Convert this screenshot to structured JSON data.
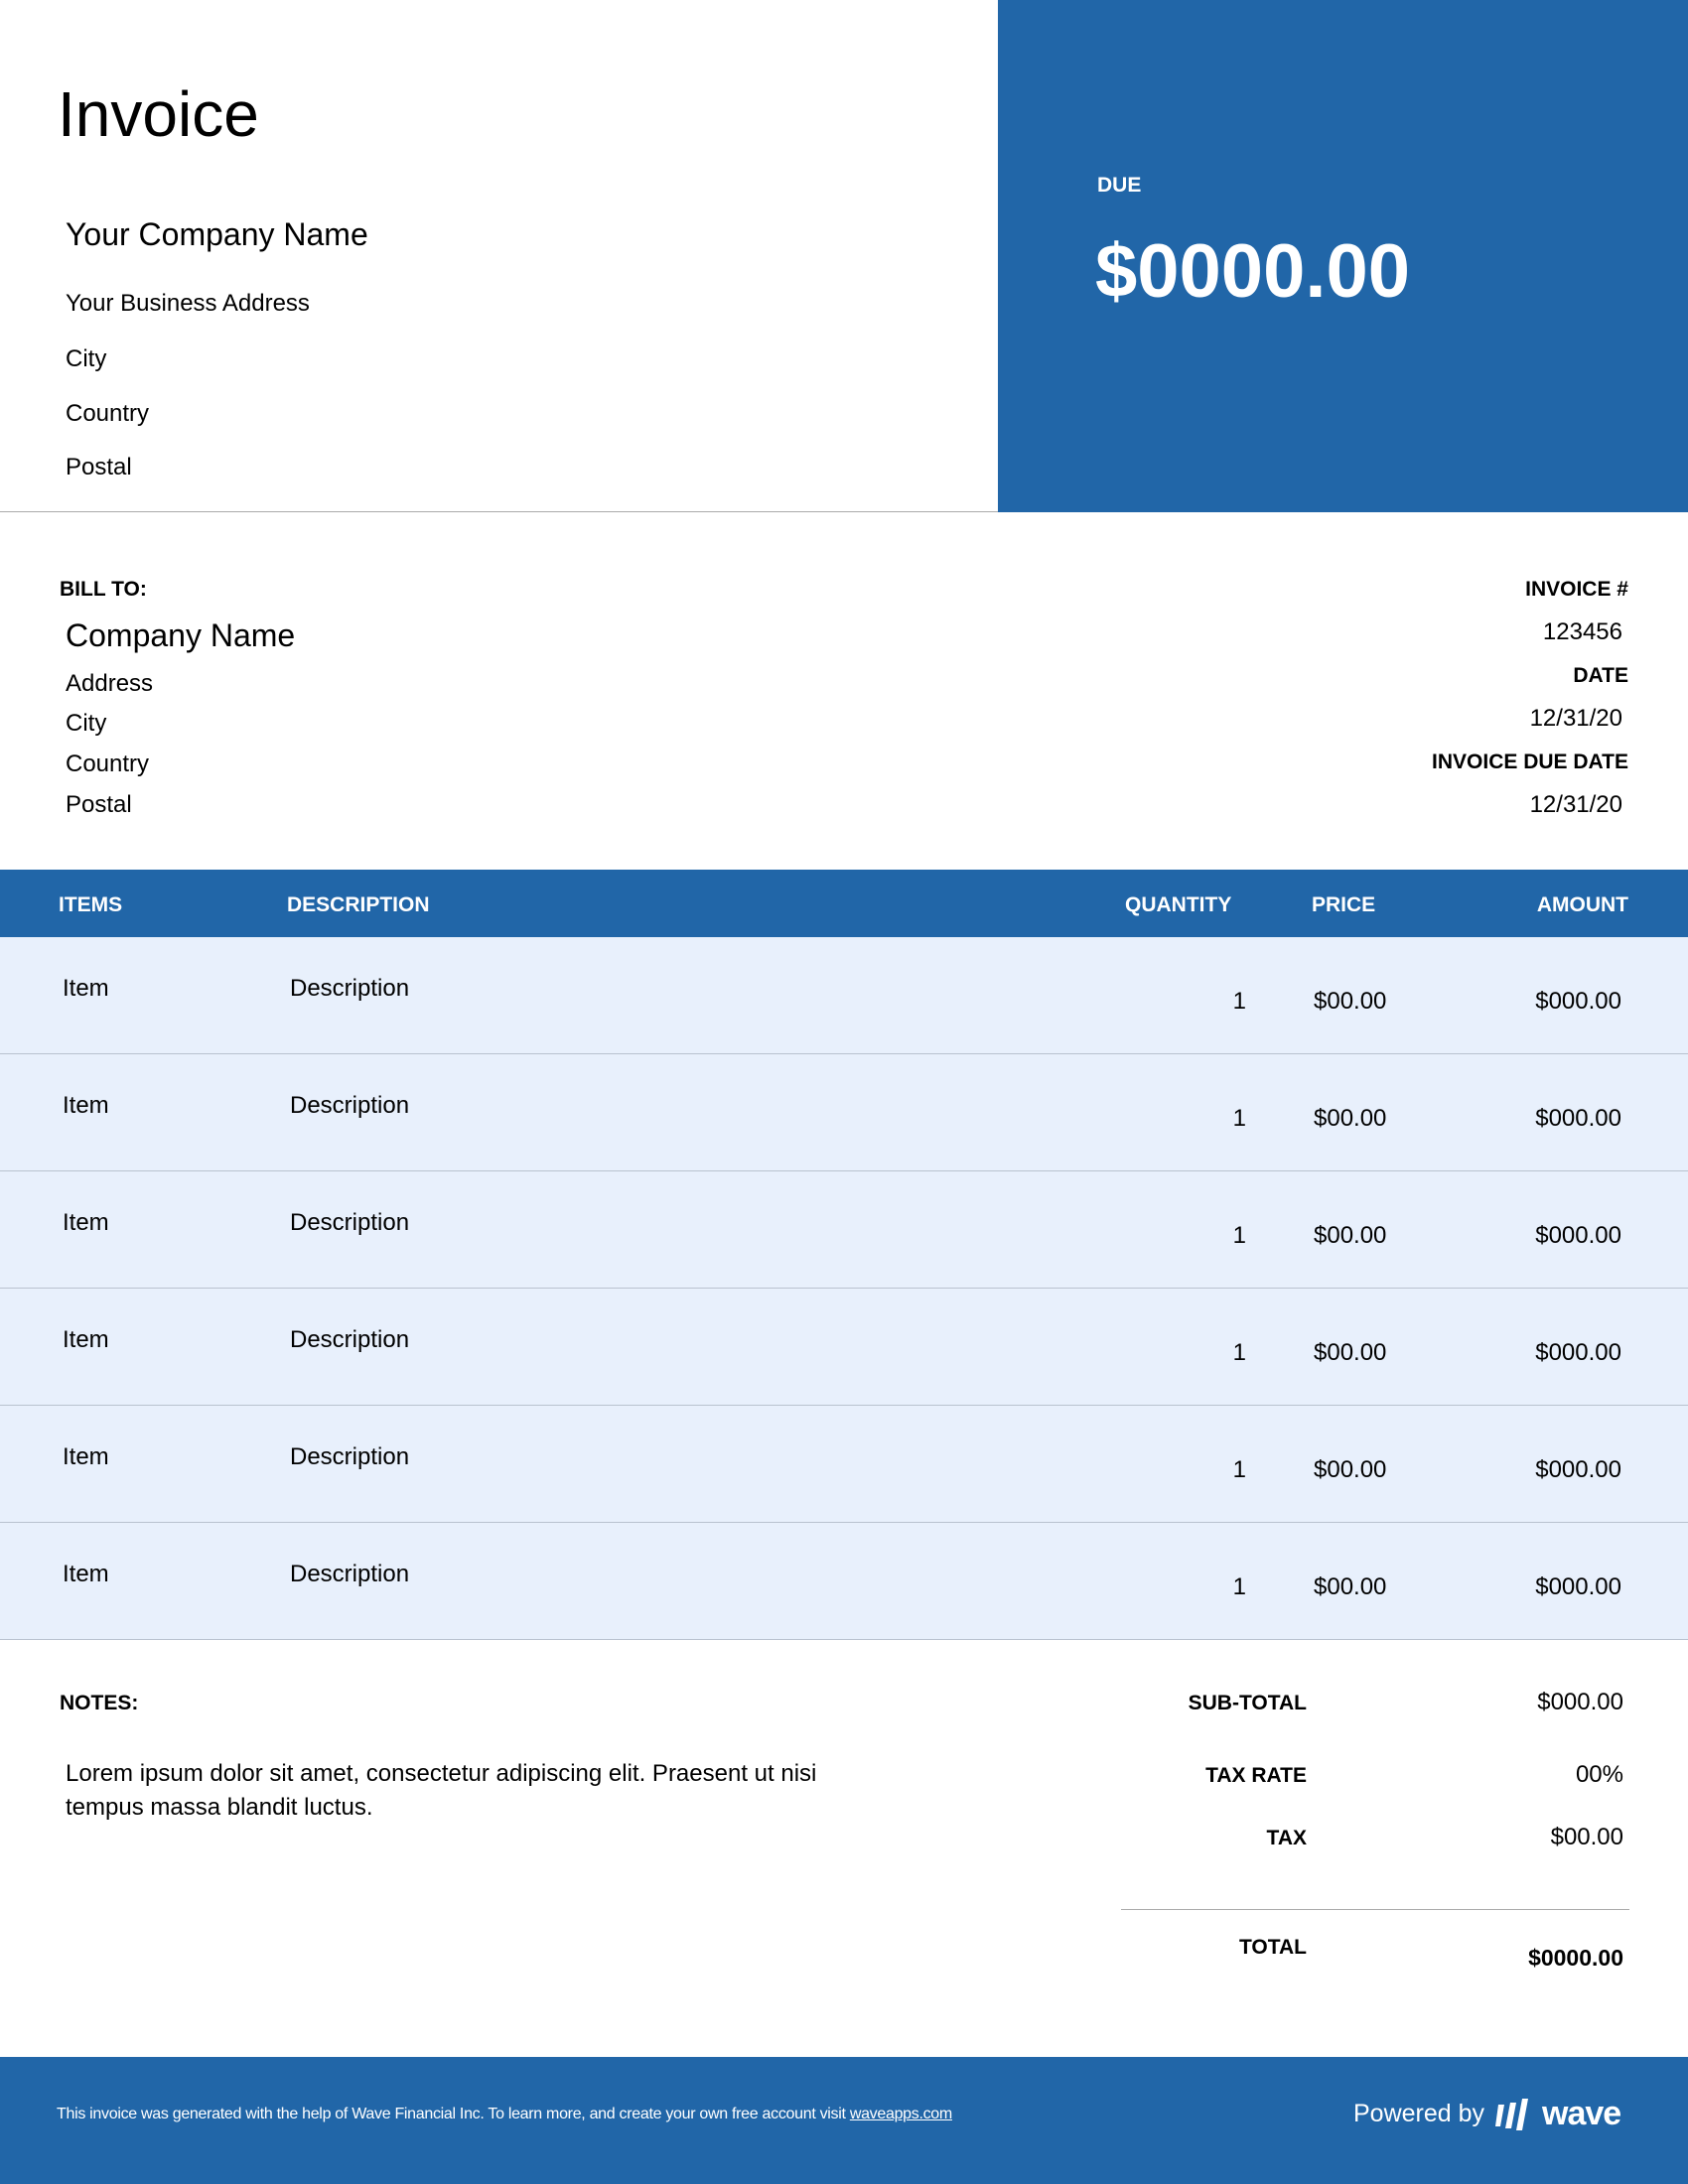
{
  "header": {
    "title": "Invoice",
    "company": "Your Company Name",
    "address": [
      "Your Business Address",
      "City",
      "Country",
      "Postal"
    ]
  },
  "due": {
    "label": "DUE",
    "amount": "$0000.00"
  },
  "bill_to": {
    "label": "BILL TO:",
    "company": "Company Name",
    "address": [
      "Address",
      "City",
      "Country",
      "Postal"
    ]
  },
  "meta": {
    "invoice_label": "INVOICE #",
    "invoice_number": "123456",
    "date_label": "DATE",
    "date": "12/31/20",
    "due_date_label": "INVOICE DUE DATE",
    "due_date": "12/31/20"
  },
  "table": {
    "headers": [
      "ITEMS",
      "DESCRIPTION",
      "QUANTITY",
      "PRICE",
      "AMOUNT"
    ],
    "rows": [
      {
        "item": "Item",
        "description": "Description",
        "quantity": "1",
        "price": "$00.00",
        "amount": "$000.00"
      },
      {
        "item": "Item",
        "description": "Description",
        "quantity": "1",
        "price": "$00.00",
        "amount": "$000.00"
      },
      {
        "item": "Item",
        "description": "Description",
        "quantity": "1",
        "price": "$00.00",
        "amount": "$000.00"
      },
      {
        "item": "Item",
        "description": "Description",
        "quantity": "1",
        "price": "$00.00",
        "amount": "$000.00"
      },
      {
        "item": "Item",
        "description": "Description",
        "quantity": "1",
        "price": "$00.00",
        "amount": "$000.00"
      },
      {
        "item": "Item",
        "description": "Description",
        "quantity": "1",
        "price": "$00.00",
        "amount": "$000.00"
      }
    ]
  },
  "notes": {
    "label": "NOTES:",
    "text_line1": "Lorem ipsum dolor sit amet, consectetur adipiscing elit. Praesent ut nisi",
    "text_line2": "tempus massa blandit luctus."
  },
  "totals": {
    "subtotal_label": "SUB-TOTAL",
    "subtotal": "$000.00",
    "tax_rate_label": "TAX RATE",
    "tax_rate": "00%",
    "tax_label": "TAX",
    "tax": "$00.00",
    "total_label": "TOTAL",
    "total": "$0000.00"
  },
  "footer": {
    "text": "This invoice was generated with the help of Wave Financial Inc. To learn more, and create your own free account visit ",
    "link": "waveapps.com",
    "powered_by": "Powered by",
    "brand": "wave"
  },
  "colors": {
    "accent": "#2166a8",
    "row_bg": "#e8f0fc"
  }
}
